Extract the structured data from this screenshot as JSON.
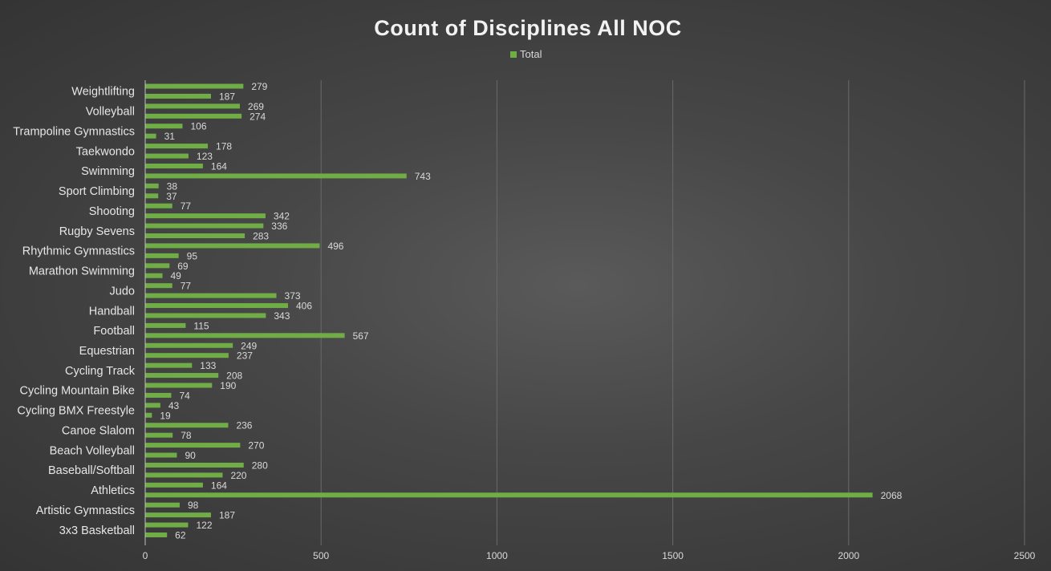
{
  "chart_data": {
    "type": "bar",
    "orientation": "horizontal",
    "title": "Count of Disciplines All NOC",
    "legend": {
      "entries": [
        "Total"
      ],
      "placement": "top"
    },
    "xlim": [
      0,
      2500
    ],
    "xticks": [
      0,
      500,
      1000,
      1500,
      2000,
      2500
    ],
    "grid": "vertical",
    "bar_color": "#70ad47",
    "labeled_categories": [
      "Weightlifting",
      "Volleyball",
      "Trampoline Gymnastics",
      "Taekwondo",
      "Swimming",
      "Sport Climbing",
      "Shooting",
      "Rugby Sevens",
      "Rhythmic Gymnastics",
      "Marathon Swimming",
      "Judo",
      "Handball",
      "Football",
      "Equestrian",
      "Cycling Track",
      "Cycling Mountain Bike",
      "Cycling BMX Freestyle",
      "Canoe Slalom",
      "Beach Volleyball",
      "Baseball/Softball",
      "Athletics",
      "Artistic Gymnastics",
      "3x3 Basketball"
    ],
    "series": [
      {
        "name": "Total",
        "values": [
          279,
          187,
          269,
          274,
          106,
          31,
          178,
          123,
          164,
          743,
          38,
          37,
          77,
          342,
          336,
          283,
          496,
          95,
          69,
          49,
          77,
          373,
          406,
          343,
          115,
          567,
          249,
          237,
          133,
          208,
          190,
          74,
          43,
          19,
          236,
          78,
          270,
          90,
          280,
          220,
          164,
          2068,
          98,
          187,
          122,
          62
        ]
      }
    ]
  }
}
